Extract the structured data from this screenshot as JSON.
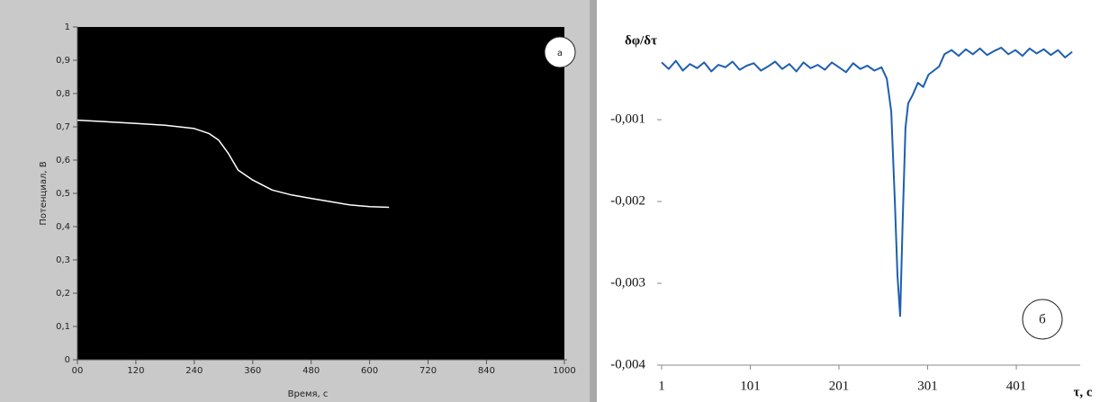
{
  "chart_data": [
    {
      "type": "line",
      "annotation": "а",
      "xlabel": "Время, с",
      "ylabel": "Потенциал, В",
      "xlim": [
        0,
        1000
      ],
      "xticks": [
        {
          "value": 0,
          "label": "00"
        },
        120,
        240,
        360,
        480,
        600,
        720,
        840,
        1000
      ],
      "ylim": [
        0,
        1
      ],
      "yticks": [
        0,
        {
          "value": 0.1,
          "label": "0,1"
        },
        {
          "value": 0.2,
          "label": "0,2"
        },
        {
          "value": 0.3,
          "label": "0,3"
        },
        {
          "value": 0.4,
          "label": "0,4"
        },
        {
          "value": 0.5,
          "label": "0,5"
        },
        {
          "value": 0.6,
          "label": "0,6"
        },
        {
          "value": 0.7,
          "label": "0,7"
        },
        {
          "value": 0.8,
          "label": "0,8"
        },
        {
          "value": 0.9,
          "label": "0,9"
        },
        1
      ],
      "x": [
        0,
        60,
        120,
        180,
        240,
        270,
        290,
        310,
        330,
        360,
        400,
        440,
        480,
        520,
        560,
        600,
        640
      ],
      "series": [
        {
          "color": "#ffffff",
          "values": [
            0.72,
            0.715,
            0.71,
            0.705,
            0.695,
            0.68,
            0.66,
            0.62,
            0.57,
            0.54,
            0.51,
            0.495,
            0.485,
            0.475,
            0.465,
            0.46,
            0.458
          ]
        }
      ]
    },
    {
      "type": "line",
      "annotation": "б",
      "xlabel": "τ, с",
      "ylabel": "δφ/δτ",
      "xlim": [
        1,
        470
      ],
      "xticks": [
        1,
        101,
        201,
        301,
        401
      ],
      "ylim": [
        -0.004,
        0.0001
      ],
      "yticks": [
        {
          "value": -0.001,
          "label": "-0,001"
        },
        {
          "value": -0.002,
          "label": "-0,002"
        },
        {
          "value": -0.003,
          "label": "-0,003"
        },
        {
          "value": -0.004,
          "label": "-0,004"
        }
      ],
      "x": [
        1,
        9,
        17,
        25,
        33,
        41,
        49,
        57,
        65,
        73,
        81,
        89,
        97,
        105,
        113,
        121,
        129,
        137,
        145,
        153,
        161,
        169,
        177,
        185,
        193,
        201,
        209,
        217,
        225,
        233,
        241,
        249,
        255,
        260,
        264,
        267,
        270,
        273,
        276,
        279,
        284,
        290,
        296,
        302,
        308,
        314,
        320,
        328,
        336,
        344,
        352,
        360,
        368,
        376,
        384,
        392,
        400,
        408,
        416,
        424,
        432,
        440,
        448,
        456,
        464
      ],
      "series": [
        {
          "color": "#1f5fb0",
          "values": [
            -0.0003,
            -0.00038,
            -0.00028,
            -0.0004,
            -0.00032,
            -0.00037,
            -0.0003,
            -0.00041,
            -0.00033,
            -0.00036,
            -0.00029,
            -0.00039,
            -0.00034,
            -0.00031,
            -0.0004,
            -0.00035,
            -0.00029,
            -0.00038,
            -0.00032,
            -0.00041,
            -0.0003,
            -0.00037,
            -0.00033,
            -0.00039,
            -0.0003,
            -0.00036,
            -0.00042,
            -0.00031,
            -0.00038,
            -0.00034,
            -0.0004,
            -0.00036,
            -0.0005,
            -0.0009,
            -0.002,
            -0.0029,
            -0.0034,
            -0.0022,
            -0.0011,
            -0.0008,
            -0.0007,
            -0.00055,
            -0.0006,
            -0.00045,
            -0.0004,
            -0.00035,
            -0.0002,
            -0.00015,
            -0.00022,
            -0.00014,
            -0.0002,
            -0.00013,
            -0.00021,
            -0.00016,
            -0.00012,
            -0.0002,
            -0.00015,
            -0.00022,
            -0.00013,
            -0.00019,
            -0.00014,
            -0.00021,
            -0.00015,
            -0.00024,
            -0.00017
          ]
        }
      ]
    }
  ]
}
